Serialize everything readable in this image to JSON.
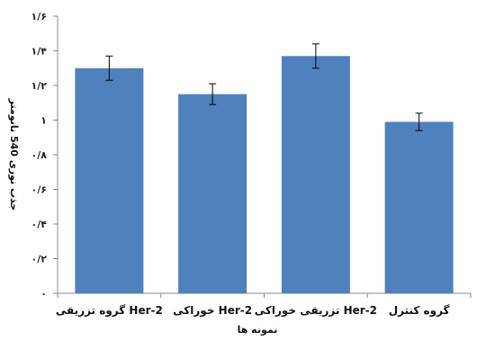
{
  "chart_data": {
    "type": "bar",
    "categories": [
      "گروه تزریقی Her-2",
      "خوراکی Her-2",
      "تزریقی خوراکی Her-2",
      "گروه کنترل"
    ],
    "values": [
      1.3,
      1.15,
      1.37,
      0.99
    ],
    "errors": [
      0.07,
      0.06,
      0.07,
      0.05
    ],
    "ylim": [
      0,
      1.6
    ],
    "yticks": [
      0,
      0.2,
      0.4,
      0.6,
      0.8,
      1,
      1.2,
      1.4,
      1.6
    ],
    "ytick_labels": [
      "۰",
      "۰/۲",
      "۰/۴",
      "۰/۶",
      "۰/۸",
      "۱",
      "۱/۲",
      "۱/۴",
      "۱/۶"
    ],
    "xlabel": "نمونه ها",
    "ylabel": "جذب نوری 540 نانومتر",
    "grid": false,
    "colors": {
      "bar": "#4f81bd",
      "error_bar": "#000000",
      "axis": "#888888"
    }
  }
}
